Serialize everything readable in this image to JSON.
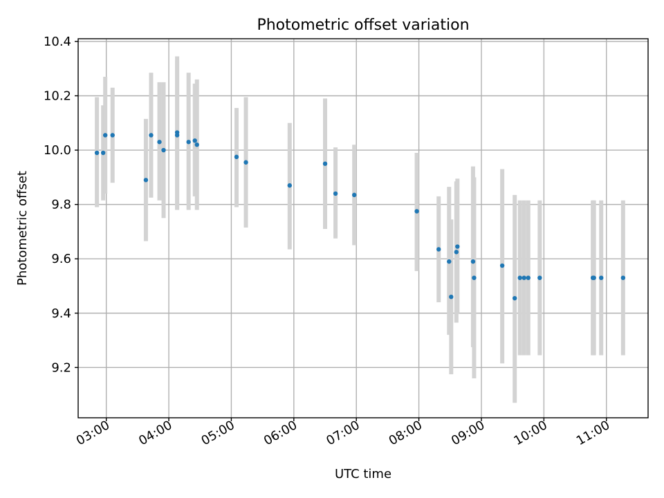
{
  "chart_data": {
    "type": "scatter",
    "title": "Photometric offset variation",
    "xlabel": "UTC time",
    "ylabel": "Photometric offset",
    "xlim": [
      "02:33",
      "11:40"
    ],
    "ylim": [
      9.015,
      10.41
    ],
    "grid": true,
    "x_ticks": [
      "03:00",
      "04:00",
      "05:00",
      "06:00",
      "07:00",
      "08:00",
      "09:00",
      "10:00",
      "11:00"
    ],
    "y_ticks": [
      9.2,
      9.4,
      9.6,
      9.8,
      10.0,
      10.2,
      10.4
    ],
    "y_tick_labels": [
      "9.2",
      "9.4",
      "9.6",
      "9.8",
      "10.0",
      "10.2",
      "10.4"
    ],
    "colors": {
      "marker": "#1f77b4",
      "errorbar": "#d3d3d3",
      "grid": "#b0b0b0"
    },
    "points": [
      {
        "x": "02:51",
        "y": 9.99,
        "yerr_low": 9.79,
        "yerr_high": 10.195
      },
      {
        "x": "02:57",
        "y": 9.99,
        "yerr_low": 9.815,
        "yerr_high": 10.165
      },
      {
        "x": "02:59",
        "y": 10.055,
        "yerr_low": 9.84,
        "yerr_high": 10.27
      },
      {
        "x": "03:06",
        "y": 10.055,
        "yerr_low": 9.88,
        "yerr_high": 10.23
      },
      {
        "x": "03:38",
        "y": 9.89,
        "yerr_low": 9.665,
        "yerr_high": 10.115
      },
      {
        "x": "03:43",
        "y": 10.055,
        "yerr_low": 9.825,
        "yerr_high": 10.285
      },
      {
        "x": "03:51",
        "y": 10.03,
        "yerr_low": 9.815,
        "yerr_high": 10.25
      },
      {
        "x": "03:55",
        "y": 10.0,
        "yerr_low": 9.75,
        "yerr_high": 10.25
      },
      {
        "x": "04:08",
        "y": 10.065,
        "yerr_low": 9.78,
        "yerr_high": 10.345
      },
      {
        "x": "04:08",
        "y": 10.055,
        "yerr_low": 9.78,
        "yerr_high": 10.33
      },
      {
        "x": "04:19",
        "y": 10.03,
        "yerr_low": 9.78,
        "yerr_high": 10.285
      },
      {
        "x": "04:25",
        "y": 10.035,
        "yerr_low": 9.83,
        "yerr_high": 10.245
      },
      {
        "x": "04:27",
        "y": 10.02,
        "yerr_low": 9.78,
        "yerr_high": 10.26
      },
      {
        "x": "05:05",
        "y": 9.975,
        "yerr_low": 9.79,
        "yerr_high": 10.155
      },
      {
        "x": "05:14",
        "y": 9.955,
        "yerr_low": 9.715,
        "yerr_high": 10.195
      },
      {
        "x": "05:56",
        "y": 9.87,
        "yerr_low": 9.635,
        "yerr_high": 10.1
      },
      {
        "x": "06:30",
        "y": 9.95,
        "yerr_low": 9.71,
        "yerr_high": 10.19
      },
      {
        "x": "06:40",
        "y": 9.84,
        "yerr_low": 9.675,
        "yerr_high": 10.01
      },
      {
        "x": "06:58",
        "y": 9.835,
        "yerr_low": 9.65,
        "yerr_high": 10.02
      },
      {
        "x": "07:58",
        "y": 9.775,
        "yerr_low": 9.555,
        "yerr_high": 9.99
      },
      {
        "x": "08:19",
        "y": 9.635,
        "yerr_low": 9.44,
        "yerr_high": 9.83
      },
      {
        "x": "08:29",
        "y": 9.59,
        "yerr_low": 9.32,
        "yerr_high": 9.865
      },
      {
        "x": "08:31",
        "y": 9.46,
        "yerr_low": 9.175,
        "yerr_high": 9.745
      },
      {
        "x": "08:36",
        "y": 9.625,
        "yerr_low": 9.365,
        "yerr_high": 9.885
      },
      {
        "x": "08:37",
        "y": 9.645,
        "yerr_low": 9.4,
        "yerr_high": 9.895
      },
      {
        "x": "08:52",
        "y": 9.59,
        "yerr_low": 9.275,
        "yerr_high": 9.94
      },
      {
        "x": "08:53",
        "y": 9.53,
        "yerr_low": 9.16,
        "yerr_high": 9.9
      },
      {
        "x": "09:20",
        "y": 9.575,
        "yerr_low": 9.215,
        "yerr_high": 9.93
      },
      {
        "x": "09:32",
        "y": 9.455,
        "yerr_low": 9.07,
        "yerr_high": 9.835
      },
      {
        "x": "09:37",
        "y": 9.53,
        "yerr_low": 9.245,
        "yerr_high": 9.815
      },
      {
        "x": "09:41",
        "y": 9.53,
        "yerr_low": 9.245,
        "yerr_high": 9.815
      },
      {
        "x": "09:45",
        "y": 9.53,
        "yerr_low": 9.245,
        "yerr_high": 9.815
      },
      {
        "x": "09:56",
        "y": 9.53,
        "yerr_low": 9.245,
        "yerr_high": 9.815
      },
      {
        "x": "10:47",
        "y": 9.53,
        "yerr_low": 9.245,
        "yerr_high": 9.815
      },
      {
        "x": "10:48",
        "y": 9.53,
        "yerr_low": 9.245,
        "yerr_high": 9.815
      },
      {
        "x": "10:55",
        "y": 9.53,
        "yerr_low": 9.245,
        "yerr_high": 9.815
      },
      {
        "x": "11:16",
        "y": 9.53,
        "yerr_low": 9.245,
        "yerr_high": 9.815
      }
    ]
  }
}
